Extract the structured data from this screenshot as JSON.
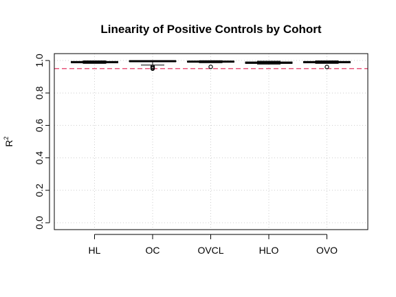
{
  "chart_data": {
    "type": "boxplot",
    "title": "Linearity of Positive Controls by Cohort",
    "xlabel": "",
    "ylabel": "R",
    "ylabel_superscript": "2",
    "ylim": [
      0.0,
      1.0
    ],
    "yticks": [
      "0.0",
      "0.2",
      "0.4",
      "0.6",
      "0.8",
      "1.0"
    ],
    "grid": true,
    "reference_line": {
      "y": 0.95,
      "style": "dashed",
      "color": "#e8547a"
    },
    "categories": [
      "HL",
      "OC",
      "OVCL",
      "HLO",
      "OVO"
    ],
    "boxes": [
      {
        "name": "HL",
        "min": 0.982,
        "q1": 0.986,
        "median": 0.99,
        "q3": 0.994,
        "max": 0.998,
        "outliers": []
      },
      {
        "name": "OC",
        "min": 0.972,
        "q1": 0.993,
        "median": 0.996,
        "q3": 0.998,
        "max": 1.0,
        "outliers": [
          0.962,
          0.955,
          0.95
        ]
      },
      {
        "name": "OVCL",
        "min": 0.986,
        "q1": 0.99,
        "median": 0.993,
        "q3": 0.996,
        "max": 0.999,
        "outliers": [
          0.961
        ]
      },
      {
        "name": "HLO",
        "min": 0.978,
        "q1": 0.982,
        "median": 0.986,
        "q3": 0.991,
        "max": 0.996,
        "outliers": []
      },
      {
        "name": "OVO",
        "min": 0.982,
        "q1": 0.986,
        "median": 0.99,
        "q3": 0.994,
        "max": 0.998,
        "outliers": [
          0.96
        ]
      }
    ]
  }
}
